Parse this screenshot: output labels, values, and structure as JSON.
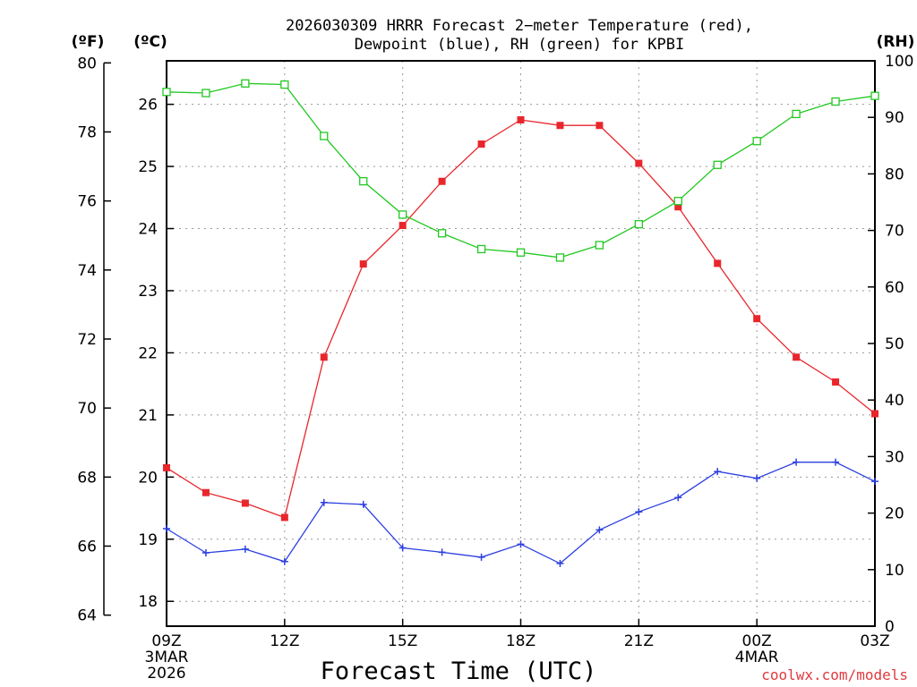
{
  "chart_data": {
    "type": "line",
    "title_line1": "2026030309 HRRR Forecast 2−meter Temperature (red),",
    "title_line2": "Dewpoint (blue), RH (green) for KPBI",
    "xlabel": "Forecast Time (UTC)",
    "credit": "coolwx.com/models",
    "units": {
      "left_f": "(ºF)",
      "left_c": "(ºC)",
      "right_rh": "(RH)"
    },
    "x_hours": [
      9,
      10,
      11,
      12,
      13,
      14,
      15,
      16,
      17,
      18,
      19,
      20,
      21,
      22,
      23,
      24,
      25,
      26,
      27
    ],
    "x_ticks": [
      {
        "hour": 9,
        "label": "09Z",
        "sub1": "3MAR",
        "sub2": "2026"
      },
      {
        "hour": 12,
        "label": "12Z",
        "sub1": "",
        "sub2": ""
      },
      {
        "hour": 15,
        "label": "15Z",
        "sub1": "",
        "sub2": ""
      },
      {
        "hour": 18,
        "label": "18Z",
        "sub1": "",
        "sub2": ""
      },
      {
        "hour": 21,
        "label": "21Z",
        "sub1": "",
        "sub2": ""
      },
      {
        "hour": 24,
        "label": "00Z",
        "sub1": "4MAR",
        "sub2": ""
      },
      {
        "hour": 27,
        "label": "03Z",
        "sub1": "",
        "sub2": ""
      }
    ],
    "celsius_ylim": [
      17.6,
      26.7
    ],
    "celsius_ticks": [
      "18",
      "19",
      "20",
      "21",
      "22",
      "23",
      "24",
      "25",
      "26"
    ],
    "fahrenheit_ticks": [
      "64",
      "66",
      "68",
      "70",
      "72",
      "74",
      "76",
      "78",
      "80"
    ],
    "rh_ylim": [
      0,
      100
    ],
    "rh_ticks": [
      "0",
      "10",
      "20",
      "30",
      "40",
      "50",
      "60",
      "70",
      "80",
      "90",
      "100"
    ],
    "grid": true,
    "series": [
      {
        "name": "Temperature",
        "unit": "C",
        "color": "#e8262c",
        "marker": "filled-square",
        "values": [
          20.15,
          19.75,
          19.58,
          19.35,
          21.93,
          23.43,
          24.05,
          24.76,
          25.36,
          25.75,
          25.66,
          25.66,
          25.05,
          24.35,
          23.44,
          22.55,
          21.93,
          21.53,
          21.02
        ]
      },
      {
        "name": "Dewpoint",
        "unit": "C",
        "color": "#2c3fe0",
        "marker": "plus",
        "values": [
          19.17,
          18.78,
          18.84,
          18.64,
          19.59,
          19.56,
          18.86,
          18.79,
          18.71,
          18.92,
          18.61,
          19.15,
          19.44,
          19.67,
          20.09,
          19.98,
          20.24,
          20.24,
          19.93
        ]
      },
      {
        "name": "RH",
        "unit": "%",
        "color": "#22c822",
        "marker": "open-square",
        "values": [
          94.5,
          94.3,
          96.0,
          95.8,
          86.7,
          78.7,
          72.8,
          69.5,
          66.7,
          66.1,
          65.2,
          67.4,
          71.1,
          75.2,
          81.6,
          85.8,
          90.6,
          92.8,
          93.8
        ]
      }
    ]
  }
}
